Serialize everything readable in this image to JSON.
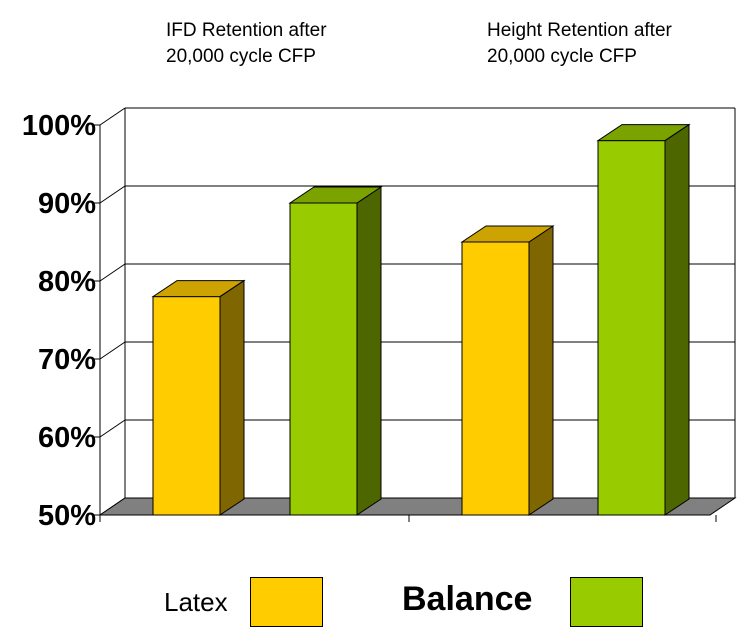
{
  "chart_data": {
    "type": "bar",
    "style": "3d-clustered-column",
    "categories": [
      [
        "IFD Retention after",
        "20,000 cycle CFP"
      ],
      [
        "Height Retention after",
        "20,000 cycle CFP"
      ]
    ],
    "series": [
      {
        "name": "Latex",
        "values": [
          78,
          85
        ],
        "color": "#FFCC00",
        "side_color": "#806600",
        "top_color": "#CCA300"
      },
      {
        "name": "Balance",
        "values": [
          90,
          98
        ],
        "color": "#99CC00",
        "side_color": "#4D6600",
        "top_color": "#7AA300"
      }
    ],
    "ylim": [
      50,
      100
    ],
    "yticks": [
      "50%",
      "60%",
      "70%",
      "80%",
      "90%",
      "100%"
    ],
    "grid": true,
    "legend": "bottom",
    "floor_color": "#808080"
  }
}
